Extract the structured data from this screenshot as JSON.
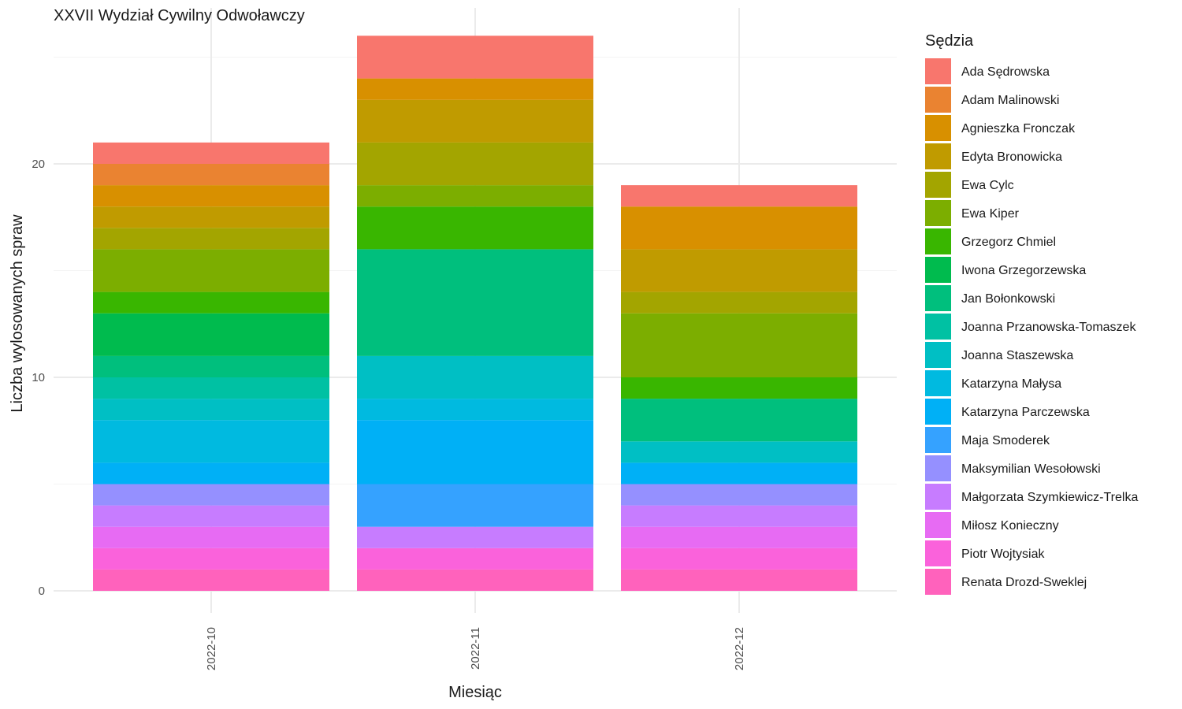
{
  "chart_data": {
    "type": "bar",
    "stacked": true,
    "title": "XXVII Wydział Cywilny Odwoławczy",
    "xlabel": "Miesiąc",
    "ylabel": "Liczba wylosowanych spraw",
    "ylim": [
      0,
      27
    ],
    "yticks": [
      0,
      10,
      20
    ],
    "grid": true,
    "legend_title": "Sędzia",
    "legend_position": "right",
    "categories": [
      "2022-10",
      "2022-11",
      "2022-12"
    ],
    "series": [
      {
        "name": "Ada Sędrowska",
        "color": "#F8766D",
        "values": [
          1,
          2,
          1
        ]
      },
      {
        "name": "Adam Malinowski",
        "color": "#EA8331",
        "values": [
          1,
          0,
          0
        ]
      },
      {
        "name": "Agnieszka Fronczak",
        "color": "#D89000",
        "values": [
          1,
          1,
          2
        ]
      },
      {
        "name": "Edyta Bronowicka",
        "color": "#C09B00",
        "values": [
          1,
          2,
          2
        ]
      },
      {
        "name": "Ewa Cylc",
        "color": "#A3A500",
        "values": [
          1,
          2,
          1
        ]
      },
      {
        "name": "Ewa Kiper",
        "color": "#7CAE00",
        "values": [
          2,
          1,
          3
        ]
      },
      {
        "name": "Grzegorz Chmiel",
        "color": "#39B600",
        "values": [
          1,
          2,
          1
        ]
      },
      {
        "name": "Iwona Grzegorzewska",
        "color": "#00BB4E",
        "values": [
          2,
          0,
          0
        ]
      },
      {
        "name": "Jan Bołonkowski",
        "color": "#00BF7D",
        "values": [
          1,
          5,
          2
        ]
      },
      {
        "name": "Joanna Przanowska-Tomaszek",
        "color": "#00C1A3",
        "values": [
          1,
          0,
          0
        ]
      },
      {
        "name": "Joanna Staszewska",
        "color": "#00BFC4",
        "values": [
          1,
          2,
          1
        ]
      },
      {
        "name": "Katarzyna Małysa",
        "color": "#00BAE0",
        "values": [
          2,
          1,
          0
        ]
      },
      {
        "name": "Katarzyna Parczewska",
        "color": "#00B0F6",
        "values": [
          1,
          3,
          1
        ]
      },
      {
        "name": "Maja Smoderek",
        "color": "#35A2FF",
        "values": [
          0,
          2,
          0
        ]
      },
      {
        "name": "Maksymilian Wesołowski",
        "color": "#9590FF",
        "values": [
          1,
          0,
          1
        ]
      },
      {
        "name": "Małgorzata Szymkiewicz-Trelka",
        "color": "#C77CFF",
        "values": [
          1,
          1,
          1
        ]
      },
      {
        "name": "Miłosz Konieczny",
        "color": "#E76BF3",
        "values": [
          1,
          0,
          1
        ]
      },
      {
        "name": "Piotr Wojtysiak",
        "color": "#FA62DB",
        "values": [
          1,
          1,
          1
        ]
      },
      {
        "name": "Renata Drozd-Sweklej",
        "color": "#FF62BC",
        "values": [
          1,
          1,
          1
        ]
      }
    ]
  }
}
